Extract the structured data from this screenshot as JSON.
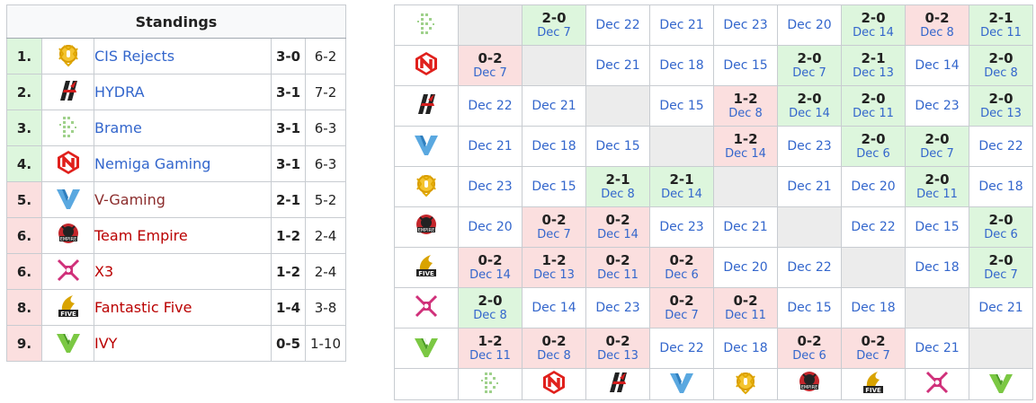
{
  "standings": {
    "title": "Standings",
    "rows": [
      {
        "rank": "1.",
        "team": "CIS Rejects",
        "wl": "3-0",
        "maps": "6-2",
        "status": "up",
        "icon": "cis-rejects-logo-icon"
      },
      {
        "rank": "2.",
        "team": "HYDRA",
        "wl": "3-1",
        "maps": "7-2",
        "status": "up",
        "icon": "hydra-logo-icon"
      },
      {
        "rank": "3.",
        "team": "Brame",
        "wl": "3-1",
        "maps": "6-3",
        "status": "up",
        "icon": "brame-logo-icon"
      },
      {
        "rank": "4.",
        "team": "Nemiga Gaming",
        "wl": "3-1",
        "maps": "6-3",
        "status": "up",
        "icon": "nemiga-logo-icon"
      },
      {
        "rank": "5.",
        "team": "V-Gaming",
        "wl": "2-1",
        "maps": "5-2",
        "status": "down",
        "icon": "v-gaming-logo-icon"
      },
      {
        "rank": "6.",
        "team": "Team Empire",
        "wl": "1-2",
        "maps": "2-4",
        "status": "down",
        "icon": "team-empire-logo-icon"
      },
      {
        "rank": "6.",
        "team": "X3",
        "wl": "1-2",
        "maps": "2-4",
        "status": "down",
        "icon": "x3-logo-icon"
      },
      {
        "rank": "8.",
        "team": "Fantastic Five",
        "wl": "1-4",
        "maps": "3-8",
        "status": "down",
        "icon": "fantastic-five-logo-icon"
      },
      {
        "rank": "9.",
        "team": "IVY",
        "wl": "0-5",
        "maps": "1-10",
        "status": "down",
        "icon": "ivy-logo-icon"
      }
    ]
  },
  "cross": {
    "row_teams": [
      "brame",
      "nemiga",
      "hydra",
      "vgaming",
      "cis",
      "empire",
      "five",
      "x3",
      "ivy"
    ],
    "col_teams": [
      "brame",
      "nemiga",
      "hydra",
      "vgaming",
      "cis",
      "empire",
      "five",
      "x3",
      "ivy"
    ],
    "rows": [
      [
        {
          "t": "self"
        },
        {
          "t": "w",
          "s": "2-0",
          "d": "Dec 7"
        },
        {
          "d": "Dec 22"
        },
        {
          "d": "Dec 21"
        },
        {
          "d": "Dec 23"
        },
        {
          "d": "Dec 20"
        },
        {
          "t": "w",
          "s": "2-0",
          "d": "Dec 14"
        },
        {
          "t": "l",
          "s": "0-2",
          "d": "Dec 8"
        },
        {
          "t": "w",
          "s": "2-1",
          "d": "Dec 11"
        }
      ],
      [
        {
          "t": "l",
          "s": "0-2",
          "d": "Dec 7"
        },
        {
          "t": "self"
        },
        {
          "d": "Dec 21"
        },
        {
          "d": "Dec 18"
        },
        {
          "d": "Dec 15"
        },
        {
          "t": "w",
          "s": "2-0",
          "d": "Dec 7"
        },
        {
          "t": "w",
          "s": "2-1",
          "d": "Dec 13"
        },
        {
          "d": "Dec 14"
        },
        {
          "t": "w",
          "s": "2-0",
          "d": "Dec 8"
        }
      ],
      [
        {
          "d": "Dec 22"
        },
        {
          "d": "Dec 21"
        },
        {
          "t": "self"
        },
        {
          "d": "Dec 15"
        },
        {
          "t": "l",
          "s": "1-2",
          "d": "Dec 8"
        },
        {
          "t": "w",
          "s": "2-0",
          "d": "Dec 14"
        },
        {
          "t": "w",
          "s": "2-0",
          "d": "Dec 11"
        },
        {
          "d": "Dec 23"
        },
        {
          "t": "w",
          "s": "2-0",
          "d": "Dec 13"
        }
      ],
      [
        {
          "d": "Dec 21"
        },
        {
          "d": "Dec 18"
        },
        {
          "d": "Dec 15"
        },
        {
          "t": "self"
        },
        {
          "t": "l",
          "s": "1-2",
          "d": "Dec 14"
        },
        {
          "d": "Dec 23"
        },
        {
          "t": "w",
          "s": "2-0",
          "d": "Dec 6"
        },
        {
          "t": "w",
          "s": "2-0",
          "d": "Dec 7"
        },
        {
          "d": "Dec 22"
        }
      ],
      [
        {
          "d": "Dec 23"
        },
        {
          "d": "Dec 15"
        },
        {
          "t": "w",
          "s": "2-1",
          "d": "Dec 8"
        },
        {
          "t": "w",
          "s": "2-1",
          "d": "Dec 14"
        },
        {
          "t": "self"
        },
        {
          "d": "Dec 21"
        },
        {
          "d": "Dec 20"
        },
        {
          "t": "w",
          "s": "2-0",
          "d": "Dec 11"
        },
        {
          "d": "Dec 18"
        }
      ],
      [
        {
          "d": "Dec 20"
        },
        {
          "t": "l",
          "s": "0-2",
          "d": "Dec 7"
        },
        {
          "t": "l",
          "s": "0-2",
          "d": "Dec 14"
        },
        {
          "d": "Dec 23"
        },
        {
          "d": "Dec 21"
        },
        {
          "t": "self"
        },
        {
          "d": "Dec 22"
        },
        {
          "d": "Dec 15"
        },
        {
          "t": "w",
          "s": "2-0",
          "d": "Dec 6"
        }
      ],
      [
        {
          "t": "l",
          "s": "0-2",
          "d": "Dec 14"
        },
        {
          "t": "l",
          "s": "1-2",
          "d": "Dec 13"
        },
        {
          "t": "l",
          "s": "0-2",
          "d": "Dec 11"
        },
        {
          "t": "l",
          "s": "0-2",
          "d": "Dec 6"
        },
        {
          "d": "Dec 20"
        },
        {
          "d": "Dec 22"
        },
        {
          "t": "self"
        },
        {
          "d": "Dec 18"
        },
        {
          "t": "w",
          "s": "2-0",
          "d": "Dec 7"
        }
      ],
      [
        {
          "t": "w",
          "s": "2-0",
          "d": "Dec 8"
        },
        {
          "d": "Dec 14"
        },
        {
          "d": "Dec 23"
        },
        {
          "t": "l",
          "s": "0-2",
          "d": "Dec 7"
        },
        {
          "t": "l",
          "s": "0-2",
          "d": "Dec 11"
        },
        {
          "d": "Dec 15"
        },
        {
          "d": "Dec 18"
        },
        {
          "t": "self"
        },
        {
          "d": "Dec 21"
        }
      ],
      [
        {
          "t": "l",
          "s": "1-2",
          "d": "Dec 11"
        },
        {
          "t": "l",
          "s": "0-2",
          "d": "Dec 8"
        },
        {
          "t": "l",
          "s": "0-2",
          "d": "Dec 13"
        },
        {
          "d": "Dec 22"
        },
        {
          "d": "Dec 18"
        },
        {
          "t": "l",
          "s": "0-2",
          "d": "Dec 6"
        },
        {
          "t": "l",
          "s": "0-2",
          "d": "Dec 7"
        },
        {
          "d": "Dec 21"
        },
        {
          "t": "self"
        }
      ]
    ]
  },
  "colors": {
    "win_bg": "#ddf6dd",
    "loss_bg": "#fbdfdf",
    "self_bg": "#ececec",
    "link": "#3366cc",
    "border": "#c8ccd1"
  }
}
